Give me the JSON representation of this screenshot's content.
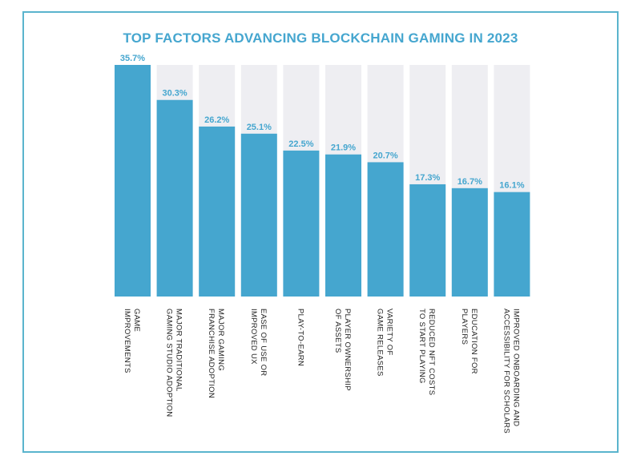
{
  "colors": {
    "bar": "#45a6cf",
    "track": "#eeeef2",
    "frame": "#5ab4cd",
    "title": "#45a6cf"
  },
  "chart_data": {
    "type": "bar",
    "title": "TOP FACTORS ADVANCING BLOCKCHAIN GAMING IN 2023",
    "xlabel": "",
    "ylabel": "",
    "ylim": [
      0,
      35.7
    ],
    "grid": false,
    "value_suffix": "%",
    "categories": [
      [
        "GAME",
        "IMPROVEMENTS"
      ],
      [
        "MAJOR TRADITIONAL",
        "GAMING STUDIO ADOPTION"
      ],
      [
        "MAJOR GAMING",
        "FRANCHISE ADOPTION"
      ],
      [
        "EASE OF USE OR",
        "IMPROVED UX"
      ],
      [
        "PLAY-TO-EARN"
      ],
      [
        "PLAYER OWNERSHIP",
        "OF ASSETS"
      ],
      [
        "VARIETY OF",
        "GAME RELEASES"
      ],
      [
        "REDUCED NFT COSTS",
        "TO START PLAYING"
      ],
      [
        "EDUCATION FOR",
        "PLAYERS"
      ],
      [
        "IMPROVED ONBOARDING AND",
        "ACCESSIBILITY FOR SCHOLARS"
      ]
    ],
    "values": [
      35.7,
      30.3,
      26.2,
      25.1,
      22.5,
      21.9,
      20.7,
      17.3,
      16.7,
      16.1
    ],
    "value_labels": [
      "35.7%",
      "30.3%",
      "26.2%",
      "25.1%",
      "22.5%",
      "21.9%",
      "20.7%",
      "17.3%",
      "16.7%",
      "16.1%"
    ]
  }
}
